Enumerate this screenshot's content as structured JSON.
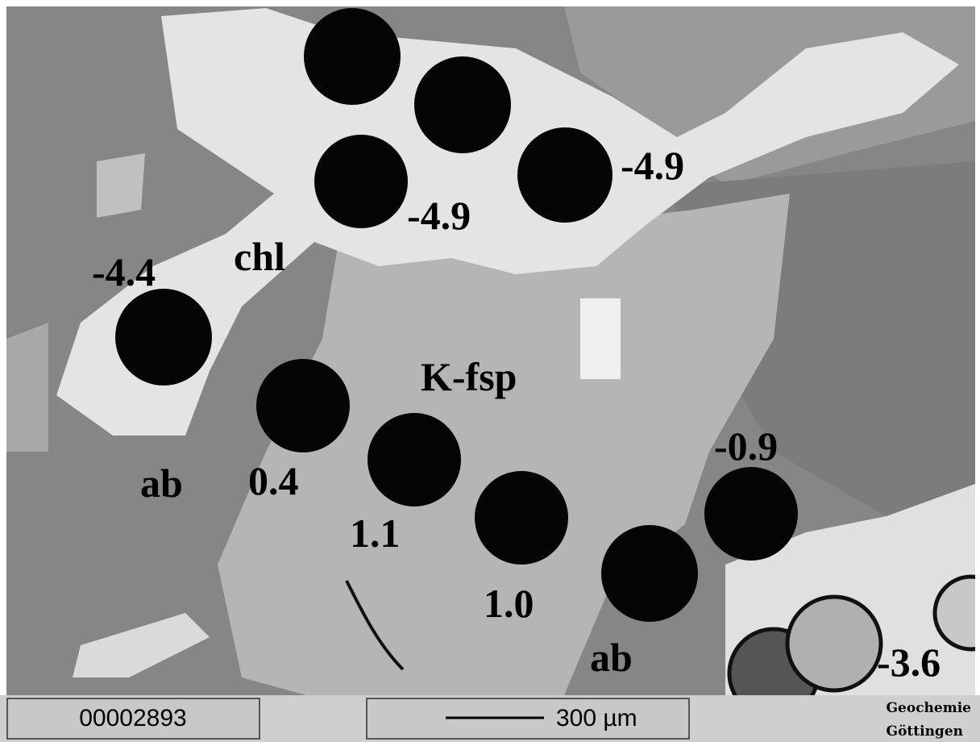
{
  "image": {
    "labels": {
      "chl": "chl",
      "kfsp": "K-fsp",
      "ab_left": "ab",
      "ab_bottom": "ab"
    },
    "values": [
      "-4.9",
      "-4.9",
      "-4.4",
      "0.4",
      "1.1",
      "1.0",
      "-0.9",
      "-3.6"
    ]
  },
  "footer": {
    "image_number": "00002893",
    "scale_bar": "300 µm",
    "institution": [
      "Geochemie",
      "Göttingen"
    ]
  }
}
